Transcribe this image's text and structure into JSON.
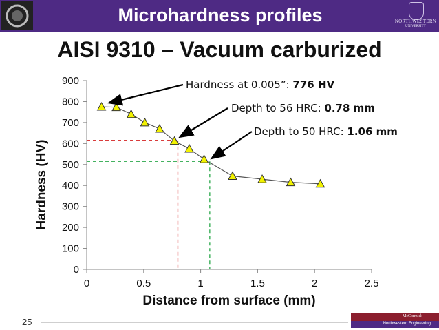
{
  "slide": {
    "header_title": "Microhardness profiles",
    "subtitle": "AISI 9310 – Vacuum carburized",
    "slide_number": "25",
    "university_name": "NORTHWESTERN",
    "university_sub": "UNIVERSITY",
    "footer_top": "McCormick",
    "footer_bottom": "Northwestern Engineering",
    "accent_color": "#4e2a84",
    "footer_red_color": "#8b1e2e"
  },
  "annotations": [
    {
      "prefix": "Hardness at 0.005”: ",
      "value": "776 HV"
    },
    {
      "prefix": "Depth to 56 HRC: ",
      "value": "0.78 mm"
    },
    {
      "prefix": "Depth to 50 HRC: ",
      "value": "1.06 mm"
    }
  ],
  "chart_data": {
    "type": "line",
    "xlabel": "Distance from surface (mm)",
    "ylabel": "Hardness (HV)",
    "xlim": [
      0,
      2.5
    ],
    "ylim": [
      0,
      900
    ],
    "xticks": [
      "0",
      "0.5",
      "1",
      "1.5",
      "2",
      "2.5"
    ],
    "yticks": [
      "0",
      "100",
      "200",
      "300",
      "400",
      "500",
      "600",
      "700",
      "800",
      "900"
    ],
    "series": [
      {
        "marker": "triangle",
        "color": "#f2f200",
        "x": [
          0.13,
          0.26,
          0.39,
          0.51,
          0.64,
          0.77,
          0.9,
          1.03,
          1.28,
          1.54,
          1.79,
          2.05
        ],
        "y": [
          775,
          773,
          740,
          700,
          670,
          612,
          575,
          525,
          445,
          430,
          415,
          408
        ]
      }
    ],
    "reference_lines": [
      {
        "x": 0.8,
        "y": 615,
        "color": "#d42020"
      },
      {
        "x": 1.08,
        "y": 515,
        "color": "#2aa84a"
      }
    ]
  }
}
